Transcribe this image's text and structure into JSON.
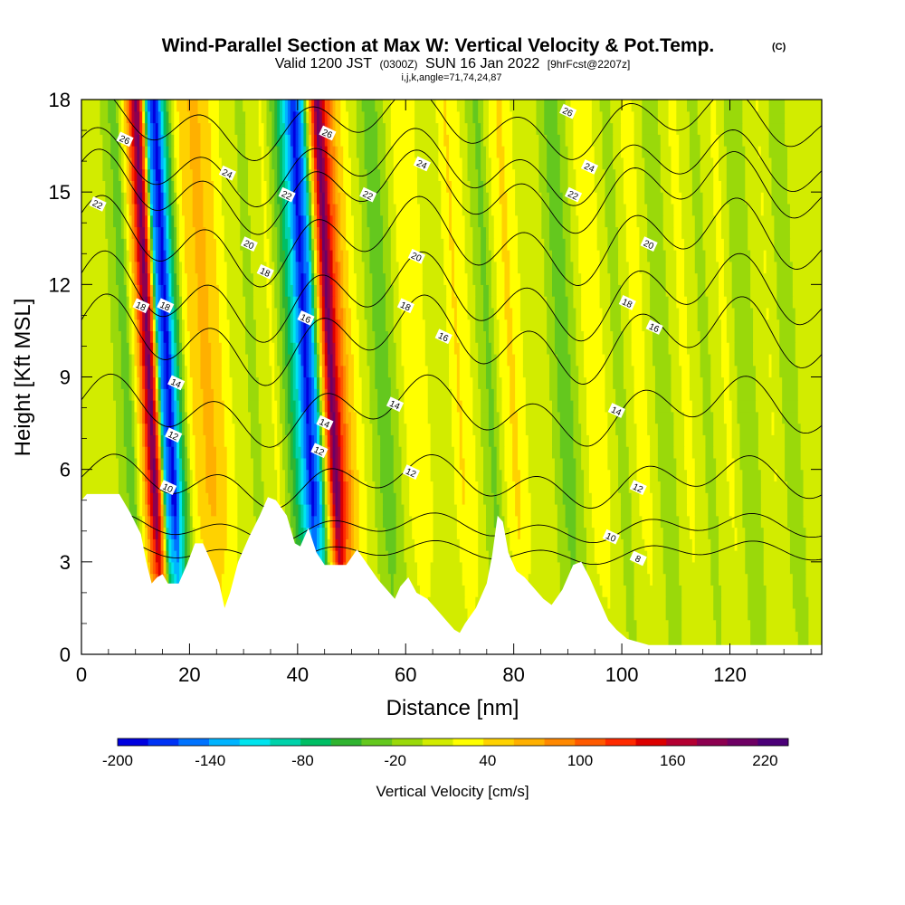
{
  "chart_data": {
    "type": "heatmap",
    "title": "Wind-Parallel Section at Max W: Vertical Velocity & Pot.Temp.",
    "title_mark": "(C)",
    "subtitle": {
      "valid": "Valid 1200 JST",
      "utc": "(0300Z)",
      "date": "SUN 16 Jan 2022",
      "forecast": "[9hrFcst@2207z]"
    },
    "section_indices": "i,j,k,angle=71,74,24,87",
    "xlabel": "Distance [nm]",
    "ylabel": "Height [Kft MSL]",
    "xlim": [
      0,
      137
    ],
    "ylim": [
      0,
      18
    ],
    "x_ticks": [
      0,
      20,
      40,
      60,
      80,
      100,
      120
    ],
    "y_ticks": [
      0,
      3,
      6,
      9,
      12,
      15,
      18
    ],
    "colorbar": {
      "title": "Vertical Velocity [cm/s]",
      "min": -200,
      "max": 235,
      "tick_labels": [
        -200,
        -140,
        -80,
        -20,
        40,
        100,
        160,
        220
      ],
      "colors": [
        "#0000e0",
        "#0033f5",
        "#0073ff",
        "#00b4ff",
        "#00e4ee",
        "#00d2aa",
        "#00be64",
        "#30b430",
        "#64c81e",
        "#9ad90a",
        "#d2ec00",
        "#ffff00",
        "#ffd200",
        "#ffb000",
        "#ff8800",
        "#ff5a00",
        "#ff2a00",
        "#dc0000",
        "#b40032",
        "#8c0050",
        "#6e0064",
        "#4b0078"
      ]
    },
    "vertical_velocity_columns": [
      {
        "x": 0,
        "w": 10
      },
      {
        "x": 2,
        "w": 14
      },
      {
        "x": 4,
        "w": 6
      },
      {
        "x": 6,
        "w": 16
      },
      {
        "x": 8,
        "w": -12
      },
      {
        "x": 10,
        "w": -35
      },
      {
        "x": 12,
        "w": 60
      },
      {
        "x": 14,
        "w": 210
      },
      {
        "x": 15,
        "w": 95
      },
      {
        "x": 16,
        "w": -130
      },
      {
        "x": 17.5,
        "w": -195
      },
      {
        "x": 19,
        "w": -85
      },
      {
        "x": 21,
        "w": 28
      },
      {
        "x": 23,
        "w": 55
      },
      {
        "x": 25,
        "w": 62
      },
      {
        "x": 27,
        "w": 42
      },
      {
        "x": 29,
        "w": 18
      },
      {
        "x": 31,
        "w": 6
      },
      {
        "x": 33,
        "w": -8
      },
      {
        "x": 35,
        "w": 4
      },
      {
        "x": 37,
        "w": 22
      },
      {
        "x": 39,
        "w": -28
      },
      {
        "x": 41,
        "w": -95
      },
      {
        "x": 43,
        "w": -190
      },
      {
        "x": 44.5,
        "w": -130
      },
      {
        "x": 46,
        "w": 60
      },
      {
        "x": 47.5,
        "w": 215
      },
      {
        "x": 49,
        "w": 120
      },
      {
        "x": 51,
        "w": 48
      },
      {
        "x": 53,
        "w": 18
      },
      {
        "x": 55,
        "w": -8
      },
      {
        "x": 57,
        "w": -40
      },
      {
        "x": 59,
        "w": -14
      },
      {
        "x": 61,
        "w": 18
      },
      {
        "x": 63,
        "w": 36
      },
      {
        "x": 65,
        "w": 20
      },
      {
        "x": 67,
        "w": 4
      },
      {
        "x": 69,
        "w": 10
      },
      {
        "x": 71,
        "w": 40
      },
      {
        "x": 73,
        "w": 26
      },
      {
        "x": 75,
        "w": -4
      },
      {
        "x": 77,
        "w": -30
      },
      {
        "x": 79,
        "w": 18
      },
      {
        "x": 81,
        "w": 44
      },
      {
        "x": 83,
        "w": 20
      },
      {
        "x": 85,
        "w": 4
      },
      {
        "x": 87,
        "w": 14
      },
      {
        "x": 89,
        "w": -18
      },
      {
        "x": 91,
        "w": -36
      },
      {
        "x": 93,
        "w": -6
      },
      {
        "x": 95,
        "w": 24
      },
      {
        "x": 97,
        "w": 32
      },
      {
        "x": 99,
        "w": 8
      },
      {
        "x": 101,
        "w": -14
      },
      {
        "x": 103,
        "w": 14
      },
      {
        "x": 105,
        "w": 28
      },
      {
        "x": 107,
        "w": 2
      },
      {
        "x": 109,
        "w": -20
      },
      {
        "x": 111,
        "w": 4
      },
      {
        "x": 113,
        "w": 24
      },
      {
        "x": 115,
        "w": 10
      },
      {
        "x": 117,
        "w": -12
      },
      {
        "x": 119,
        "w": 12
      },
      {
        "x": 121,
        "w": 22
      },
      {
        "x": 123,
        "w": -8
      },
      {
        "x": 125,
        "w": -16
      },
      {
        "x": 127,
        "w": 10
      },
      {
        "x": 129,
        "w": 18
      },
      {
        "x": 131,
        "w": -4
      },
      {
        "x": 133,
        "w": -10
      },
      {
        "x": 135,
        "w": 8
      },
      {
        "x": 137,
        "w": 12
      }
    ],
    "terrain": [
      {
        "x": 0,
        "h": 5.0
      },
      {
        "x": 1,
        "h": 5.2
      },
      {
        "x": 7,
        "h": 5.2
      },
      {
        "x": 9,
        "h": 4.6
      },
      {
        "x": 11,
        "h": 3.9
      },
      {
        "x": 12,
        "h": 3.0
      },
      {
        "x": 13,
        "h": 2.3
      },
      {
        "x": 14,
        "h": 2.5
      },
      {
        "x": 15,
        "h": 2.6
      },
      {
        "x": 16,
        "h": 2.3
      },
      {
        "x": 18,
        "h": 2.3
      },
      {
        "x": 19.5,
        "h": 2.9
      },
      {
        "x": 21,
        "h": 3.6
      },
      {
        "x": 22.5,
        "h": 3.6
      },
      {
        "x": 24,
        "h": 3.0
      },
      {
        "x": 25.5,
        "h": 2.3
      },
      {
        "x": 26.5,
        "h": 1.5
      },
      {
        "x": 27.5,
        "h": 2.0
      },
      {
        "x": 29,
        "h": 3.0
      },
      {
        "x": 31,
        "h": 3.8
      },
      {
        "x": 33,
        "h": 4.5
      },
      {
        "x": 34.5,
        "h": 5.1
      },
      {
        "x": 36,
        "h": 5.0
      },
      {
        "x": 38,
        "h": 4.5
      },
      {
        "x": 39.5,
        "h": 3.6
      },
      {
        "x": 40.5,
        "h": 3.5
      },
      {
        "x": 42,
        "h": 4.1
      },
      {
        "x": 43.5,
        "h": 3.3
      },
      {
        "x": 45,
        "h": 2.9
      },
      {
        "x": 49,
        "h": 2.9
      },
      {
        "x": 51,
        "h": 3.4
      },
      {
        "x": 53,
        "h": 2.9
      },
      {
        "x": 55,
        "h": 2.4
      },
      {
        "x": 57,
        "h": 2.0
      },
      {
        "x": 58,
        "h": 1.8
      },
      {
        "x": 59,
        "h": 2.2
      },
      {
        "x": 60.5,
        "h": 2.5
      },
      {
        "x": 62,
        "h": 2.0
      },
      {
        "x": 64,
        "h": 1.8
      },
      {
        "x": 66,
        "h": 1.4
      },
      {
        "x": 67.5,
        "h": 1.1
      },
      {
        "x": 69,
        "h": 0.8
      },
      {
        "x": 70,
        "h": 0.7
      },
      {
        "x": 71,
        "h": 1.0
      },
      {
        "x": 73,
        "h": 1.5
      },
      {
        "x": 75,
        "h": 2.3
      },
      {
        "x": 76,
        "h": 3.2
      },
      {
        "x": 77,
        "h": 4.5
      },
      {
        "x": 78,
        "h": 4.3
      },
      {
        "x": 79,
        "h": 3.3
      },
      {
        "x": 80.5,
        "h": 2.7
      },
      {
        "x": 82,
        "h": 2.5
      },
      {
        "x": 84,
        "h": 2.1
      },
      {
        "x": 85.5,
        "h": 1.8
      },
      {
        "x": 87,
        "h": 1.6
      },
      {
        "x": 89,
        "h": 2.1
      },
      {
        "x": 91,
        "h": 2.9
      },
      {
        "x": 92.5,
        "h": 3.0
      },
      {
        "x": 94,
        "h": 2.5
      },
      {
        "x": 96,
        "h": 1.7
      },
      {
        "x": 97.5,
        "h": 1.1
      },
      {
        "x": 99,
        "h": 0.8
      },
      {
        "x": 101,
        "h": 0.5
      },
      {
        "x": 103,
        "h": 0.4
      },
      {
        "x": 105,
        "h": 0.3
      },
      {
        "x": 137,
        "h": 0.3
      }
    ],
    "potential_temperature_contours": [
      {
        "theta": "8",
        "base": 3.3,
        "amp": 0.4
      },
      {
        "theta": "10",
        "base": 4.1,
        "amp": 0.5
      },
      {
        "theta": "12",
        "base": 5.6,
        "amp": 0.9
      },
      {
        "theta": "14",
        "base": 7.9,
        "amp": 1.2
      },
      {
        "theta": "16",
        "base": 10.2,
        "amp": 1.5
      },
      {
        "theta": "18",
        "base": 11.6,
        "amp": 1.5
      },
      {
        "theta": "20",
        "base": 13.4,
        "amp": 1.5
      },
      {
        "theta": "22",
        "base": 15.0,
        "amp": 1.4
      },
      {
        "theta": "24",
        "base": 15.8,
        "amp": 1.3
      },
      {
        "theta": "26",
        "base": 17.2,
        "amp": 1.2
      }
    ],
    "contour_labels": [
      {
        "text": "26",
        "x": 8,
        "y": 16.7
      },
      {
        "text": "22",
        "x": 3,
        "y": 14.6
      },
      {
        "text": "24",
        "x": 27,
        "y": 15.6
      },
      {
        "text": "22",
        "x": 38,
        "y": 14.9
      },
      {
        "text": "20",
        "x": 31,
        "y": 13.3
      },
      {
        "text": "18",
        "x": 34,
        "y": 12.4
      },
      {
        "text": "18",
        "x": 11,
        "y": 11.3
      },
      {
        "text": "18",
        "x": 15.5,
        "y": 11.3
      },
      {
        "text": "26",
        "x": 45.5,
        "y": 16.9
      },
      {
        "text": "22",
        "x": 53,
        "y": 14.9
      },
      {
        "text": "24",
        "x": 63,
        "y": 15.9
      },
      {
        "text": "20",
        "x": 62,
        "y": 12.9
      },
      {
        "text": "18",
        "x": 60,
        "y": 11.3
      },
      {
        "text": "16",
        "x": 41.5,
        "y": 10.9
      },
      {
        "text": "16",
        "x": 67,
        "y": 10.3
      },
      {
        "text": "14",
        "x": 17.5,
        "y": 8.8
      },
      {
        "text": "12",
        "x": 17,
        "y": 7.1
      },
      {
        "text": "10",
        "x": 16,
        "y": 5.4
      },
      {
        "text": "14",
        "x": 45,
        "y": 7.5
      },
      {
        "text": "12",
        "x": 44,
        "y": 6.6
      },
      {
        "text": "14",
        "x": 58,
        "y": 8.1
      },
      {
        "text": "12",
        "x": 61,
        "y": 5.9
      },
      {
        "text": "26",
        "x": 90,
        "y": 17.6
      },
      {
        "text": "24",
        "x": 94,
        "y": 15.8
      },
      {
        "text": "22",
        "x": 91,
        "y": 14.9
      },
      {
        "text": "20",
        "x": 105,
        "y": 13.3
      },
      {
        "text": "18",
        "x": 101,
        "y": 11.4
      },
      {
        "text": "16",
        "x": 106,
        "y": 10.6
      },
      {
        "text": "14",
        "x": 99,
        "y": 7.9
      },
      {
        "text": "12",
        "x": 103,
        "y": 5.4
      },
      {
        "text": "10",
        "x": 98,
        "y": 3.8
      },
      {
        "text": "8",
        "x": 103,
        "y": 3.1
      }
    ]
  }
}
